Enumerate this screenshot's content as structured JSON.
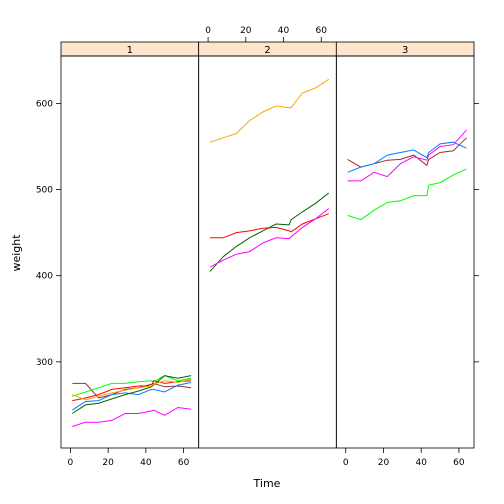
{
  "chart_data": {
    "type": "line",
    "xlabel": "Time",
    "ylabel": "weight",
    "ylim": [
      200,
      655
    ],
    "xlim": [
      -5,
      68
    ],
    "x_ticks": [
      0,
      20,
      40,
      60
    ],
    "y_ticks": [
      300,
      400,
      500,
      600
    ],
    "x_tick_labels": [
      "0",
      "20",
      "40",
      "60"
    ],
    "y_tick_labels": [
      "300",
      "400",
      "500",
      "600"
    ],
    "colors": [
      "#0080ff",
      "#ff00ff",
      "#006400",
      "#ff0000",
      "#ffa500",
      "#00ff00",
      "#a52a2a"
    ],
    "strip_color": "#ffe5cc",
    "grid": false,
    "panels": [
      {
        "label": "1",
        "series": [
          {
            "color": "#a52a2a",
            "x": [
              1,
              8,
              15,
              22,
              29,
              36,
              43,
              44,
              50,
              57,
              64
            ],
            "y": [
              275,
              275,
              258,
              262,
              268,
              270,
              274,
              275,
              271,
              272,
              270
            ]
          },
          {
            "color": "#0080ff",
            "x": [
              1,
              8,
              15,
              22,
              29,
              36,
              43,
              44,
              50,
              57,
              64
            ],
            "y": [
              244,
              254,
              255,
              262,
              264,
              262,
              268,
              268,
              265,
              273,
              276
            ]
          },
          {
            "color": "#00ff00",
            "x": [
              1,
              8,
              15,
              22,
              29,
              36,
              43,
              44,
              50,
              57,
              64
            ],
            "y": [
              260,
              265,
              270,
              275,
              275,
              277,
              278,
              277,
              284,
              278,
              281
            ]
          },
          {
            "color": "#ff0000",
            "x": [
              1,
              8,
              15,
              22,
              29,
              36,
              43,
              44,
              50,
              57,
              64
            ],
            "y": [
              255,
              258,
              262,
              268,
              270,
              272,
              272,
              278,
              275,
              277,
              278
            ]
          },
          {
            "color": "#006400",
            "x": [
              1,
              8,
              15,
              22,
              29,
              36,
              43,
              44,
              50,
              57,
              64
            ],
            "y": [
              240,
              250,
              252,
              257,
              262,
              266,
              271,
              273,
              284,
              281,
              284
            ]
          },
          {
            "color": "#ffa500",
            "x": [
              1,
              8,
              15,
              22,
              29,
              36,
              43,
              44,
              50,
              57,
              64
            ],
            "y": [
              262,
              256,
              260,
              264,
              267,
              270,
              272,
              274,
              278,
              276,
              280
            ]
          },
          {
            "color": "#ff00ff",
            "x": [
              1,
              8,
              15,
              22,
              29,
              36,
              43,
              44,
              50,
              57,
              64
            ],
            "y": [
              225,
              230,
              230,
              232,
              240,
              240,
              243,
              244,
              238,
              247,
              245
            ]
          }
        ]
      },
      {
        "label": "2",
        "series": [
          {
            "color": "#ffa500",
            "x": [
              1,
              8,
              15,
              22,
              29,
              36,
              43,
              44,
              50,
              57,
              64
            ],
            "y": [
              555,
              560,
              565,
              580,
              590,
              597,
              595,
              595,
              612,
              618,
              628
            ]
          },
          {
            "color": "#006400",
            "x": [
              1,
              8,
              15,
              22,
              29,
              36,
              43,
              44,
              50,
              57,
              64
            ],
            "y": [
              405,
              422,
              434,
              444,
              452,
              460,
              459,
              465,
              474,
              484,
              496
            ]
          },
          {
            "color": "#ff0000",
            "x": [
              1,
              8,
              15,
              22,
              29,
              36,
              43,
              44,
              50,
              57,
              64
            ],
            "y": [
              444,
              444,
              450,
              452,
              455,
              456,
              452,
              451,
              460,
              466,
              472
            ]
          },
          {
            "color": "#ff00ff",
            "x": [
              1,
              8,
              15,
              22,
              29,
              36,
              43,
              44,
              50,
              57,
              64
            ],
            "y": [
              410,
              418,
              425,
              428,
              438,
              444,
              443,
              445,
              456,
              466,
              478
            ]
          }
        ]
      },
      {
        "label": "3",
        "series": [
          {
            "color": "#a52a2a",
            "x": [
              1,
              8,
              15,
              22,
              29,
              36,
              43,
              44,
              50,
              57,
              64
            ],
            "y": [
              535,
              526,
              530,
              534,
              535,
              540,
              528,
              535,
              543,
              545,
              560
            ]
          },
          {
            "color": "#0080ff",
            "x": [
              1,
              8,
              15,
              22,
              29,
              36,
              43,
              44,
              50,
              57,
              64
            ],
            "y": [
              520,
              526,
              530,
              540,
              543,
              546,
              537,
              543,
              553,
              555,
              548
            ]
          },
          {
            "color": "#ff00ff",
            "x": [
              1,
              8,
              15,
              22,
              29,
              36,
              43,
              44,
              50,
              57,
              64
            ],
            "y": [
              510,
              510,
              520,
              515,
              530,
              538,
              534,
              540,
              550,
              552,
              569
            ]
          },
          {
            "color": "#00ff00",
            "x": [
              1,
              8,
              15,
              22,
              29,
              36,
              43,
              44,
              50,
              57,
              64
            ],
            "y": [
              470,
              465,
              476,
              485,
              487,
              493,
              493,
              505,
              508,
              517,
              524
            ]
          }
        ]
      }
    ]
  }
}
